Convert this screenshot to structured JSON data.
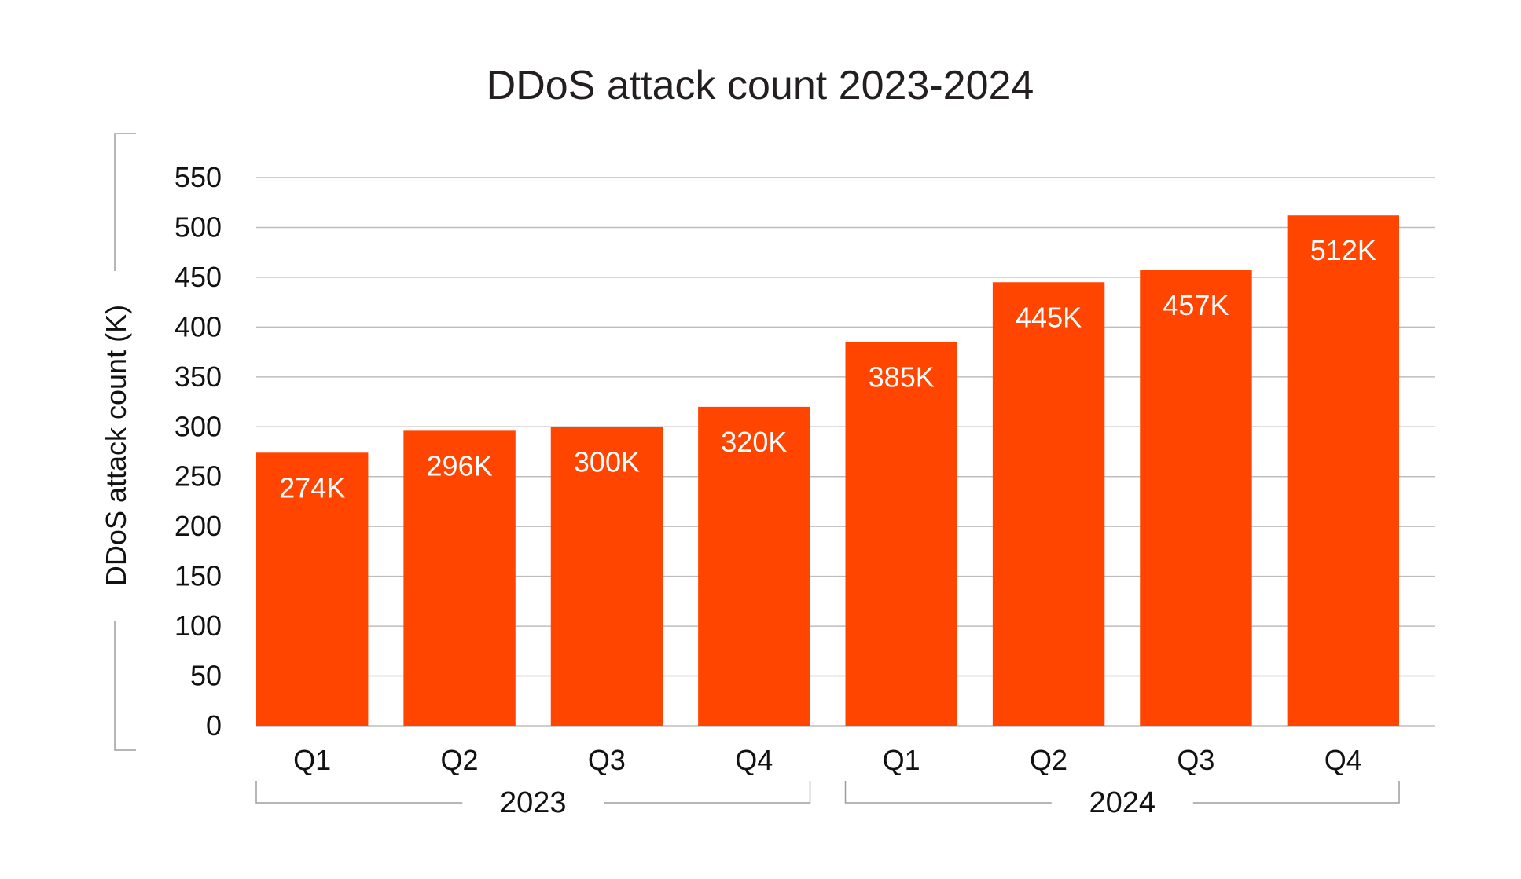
{
  "chart_data": {
    "type": "bar",
    "title": "DDoS attack count 2023-2024",
    "ylabel": "DDoS attack count (K)",
    "xlabel": "",
    "ylim": [
      0,
      550
    ],
    "yticks": [
      0,
      50,
      100,
      150,
      200,
      250,
      300,
      350,
      400,
      450,
      500,
      550
    ],
    "grid": true,
    "categories": [
      "Q1",
      "Q2",
      "Q3",
      "Q4",
      "Q1",
      "Q2",
      "Q3",
      "Q4"
    ],
    "groups": [
      {
        "label": "2023",
        "categories": [
          "Q1",
          "Q2",
          "Q3",
          "Q4"
        ]
      },
      {
        "label": "2024",
        "categories": [
          "Q1",
          "Q2",
          "Q3",
          "Q4"
        ]
      }
    ],
    "values": [
      274,
      296,
      300,
      320,
      385,
      445,
      457,
      512
    ],
    "data_labels": [
      "274K",
      "296K",
      "300K",
      "320K",
      "385K",
      "445K",
      "457K",
      "512K"
    ],
    "bar_color": "#ff4500"
  }
}
